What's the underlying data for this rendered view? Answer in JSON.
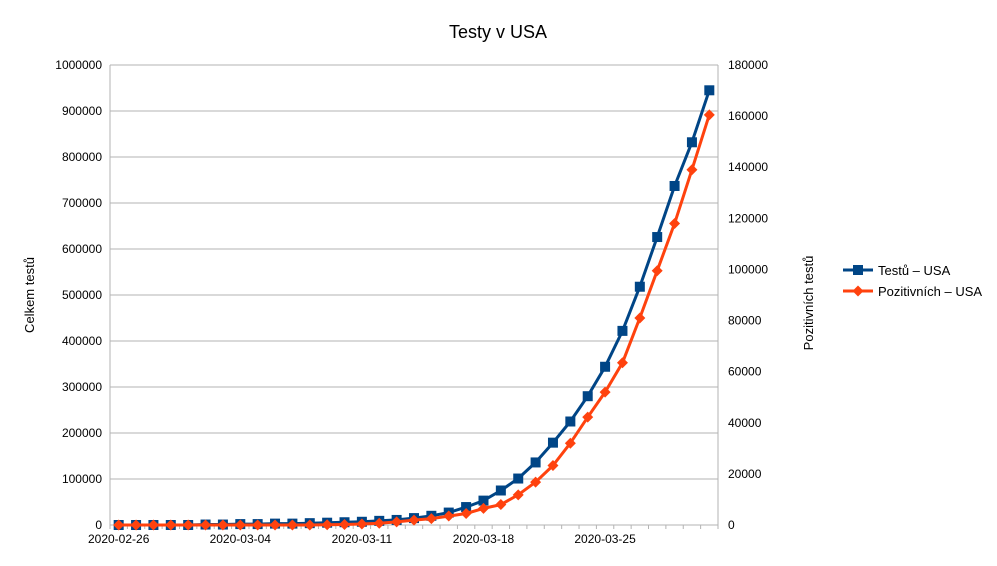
{
  "chart_data": {
    "type": "line",
    "title": "Testy v USA",
    "ylabel": "Celkem testů",
    "y2label": "Pozitivních testů",
    "xlabel": "",
    "x_tick_labels": [
      "2020-02-26",
      "2020-03-04",
      "2020-03-11",
      "2020-03-18",
      "2020-03-25"
    ],
    "ylim": [
      0,
      1000000
    ],
    "y2lim": [
      0,
      180000
    ],
    "y_ticks": [
      "0",
      "100000",
      "200000",
      "300000",
      "400000",
      "500000",
      "600000",
      "700000",
      "800000",
      "900000",
      "1000000"
    ],
    "y2_ticks": [
      "0",
      "20000",
      "40000",
      "60000",
      "80000",
      "100000",
      "120000",
      "140000",
      "160000",
      "180000"
    ],
    "grid": true,
    "legend_position": "right",
    "x": [
      "2020-02-26",
      "2020-02-27",
      "2020-02-28",
      "2020-02-29",
      "2020-03-01",
      "2020-03-02",
      "2020-03-03",
      "2020-03-04",
      "2020-03-05",
      "2020-03-06",
      "2020-03-07",
      "2020-03-08",
      "2020-03-09",
      "2020-03-10",
      "2020-03-11",
      "2020-03-12",
      "2020-03-13",
      "2020-03-14",
      "2020-03-15",
      "2020-03-16",
      "2020-03-17",
      "2020-03-18",
      "2020-03-19",
      "2020-03-20",
      "2020-03-21",
      "2020-03-22",
      "2020-03-23",
      "2020-03-24",
      "2020-03-25",
      "2020-03-26",
      "2020-03-27",
      "2020-03-28",
      "2020-03-29",
      "2020-03-30",
      "2020-03-31"
    ],
    "series": [
      {
        "name": "Testů – USA",
        "axis": "left",
        "color": "#004586",
        "marker": "square",
        "values": [
          0,
          0,
          0,
          0,
          0,
          1000,
          1000,
          2000,
          2000,
          3000,
          3000,
          4000,
          5000,
          6000,
          7000,
          9000,
          11000,
          15000,
          20000,
          27000,
          39000,
          53000,
          75000,
          101000,
          136000,
          179000,
          225000,
          280000,
          344000,
          422000,
          518000,
          626000,
          737000,
          832000,
          945000
        ]
      },
      {
        "name": "Pozitivních – USA",
        "axis": "right",
        "color": "#ff420e",
        "marker": "diamond",
        "values": [
          0,
          0,
          0,
          0,
          0,
          0,
          0,
          0,
          0,
          0,
          0,
          0,
          100,
          200,
          400,
          700,
          1200,
          1900,
          2500,
          3500,
          4500,
          6500,
          8000,
          11800,
          16800,
          23300,
          32000,
          42200,
          52000,
          63500,
          81000,
          99500,
          118000,
          139000,
          160500
        ]
      }
    ]
  }
}
